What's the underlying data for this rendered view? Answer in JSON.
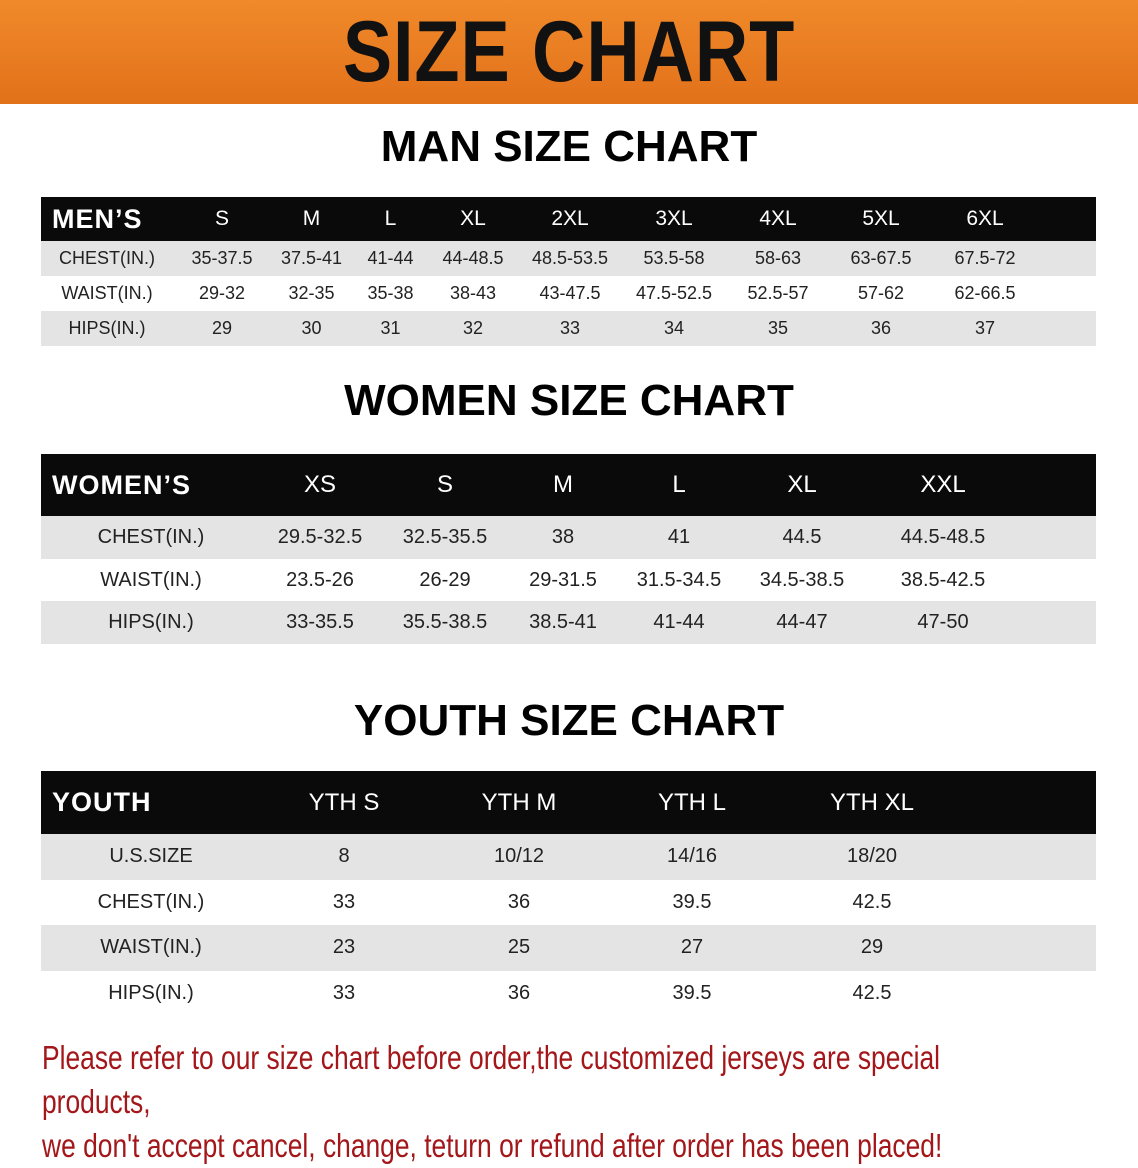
{
  "banner": {
    "title": "SIZE CHART"
  },
  "men": {
    "title": "MAN SIZE CHART",
    "header": [
      "MEN’S",
      "S",
      "M",
      "L",
      "XL",
      "2XL",
      "3XL",
      "4XL",
      "5XL",
      "6XL"
    ],
    "rows": [
      [
        "CHEST(IN.)",
        "35-37.5",
        "37.5-41",
        "41-44",
        "44-48.5",
        "48.5-53.5",
        "53.5-58",
        "58-63",
        "63-67.5",
        "67.5-72"
      ],
      [
        "WAIST(IN.)",
        "29-32",
        "32-35",
        "35-38",
        "38-43",
        "43-47.5",
        "47.5-52.5",
        "52.5-57",
        "57-62",
        "62-66.5"
      ],
      [
        "HIPS(IN.)",
        "29",
        "30",
        "31",
        "32",
        "33",
        "34",
        "35",
        "36",
        "37"
      ]
    ]
  },
  "women": {
    "title": "WOMEN SIZE CHART",
    "header": [
      "WOMEN’S",
      "XS",
      "S",
      "M",
      "L",
      "XL",
      "XXL"
    ],
    "rows": [
      [
        "CHEST(IN.)",
        "29.5-32.5",
        "32.5-35.5",
        "38",
        "41",
        "44.5",
        "44.5-48.5"
      ],
      [
        "WAIST(IN.)",
        "23.5-26",
        "26-29",
        "29-31.5",
        "31.5-34.5",
        "34.5-38.5",
        "38.5-42.5"
      ],
      [
        "HIPS(IN.)",
        "33-35.5",
        "35.5-38.5",
        "38.5-41",
        "41-44",
        "44-47",
        "47-50"
      ]
    ]
  },
  "youth": {
    "title": "YOUTH SIZE CHART",
    "header": [
      "YOUTH",
      "YTH S",
      "YTH M",
      "YTH L",
      "YTH XL"
    ],
    "rows": [
      [
        "U.S.SIZE",
        "8",
        "10/12",
        "14/16",
        "18/20"
      ],
      [
        "CHEST(IN.)",
        "33",
        "36",
        "39.5",
        "42.5"
      ],
      [
        "WAIST(IN.)",
        "23",
        "25",
        "27",
        "29"
      ],
      [
        "HIPS(IN.)",
        "33",
        "36",
        "39.5",
        "42.5"
      ]
    ]
  },
  "note": {
    "line1": "Please refer to our size chart before order,the customized jerseys are special products,",
    "line2": "we don't accept cancel, change, teturn or refund after order has been placed!"
  },
  "colors": {
    "banner": "#e8781e",
    "header_row": "#0a0a0a",
    "stripe": "#e4e4e4",
    "note": "#a3161a"
  }
}
